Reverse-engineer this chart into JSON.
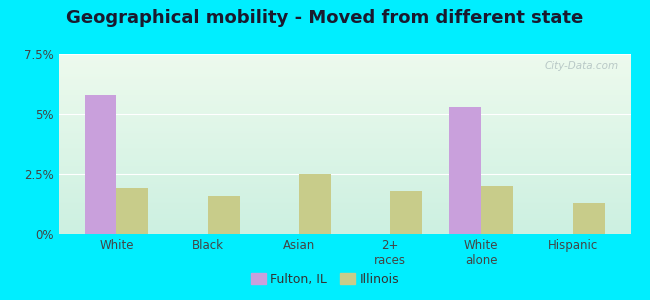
{
  "title": "Geographical mobility - Moved from different state",
  "categories": [
    "White",
    "Black",
    "Asian",
    "2+\nraces",
    "White\nalone",
    "Hispanic"
  ],
  "fulton_values": [
    5.8,
    0.0,
    0.0,
    0.0,
    5.3,
    0.0
  ],
  "illinois_values": [
    1.9,
    1.6,
    2.5,
    1.8,
    2.0,
    1.3
  ],
  "fulton_color": "#c9a0dc",
  "illinois_color": "#c8cc8a",
  "ylim": [
    0,
    7.5
  ],
  "yticks": [
    0,
    2.5,
    5.0,
    7.5
  ],
  "ytick_labels": [
    "0%",
    "2.5%",
    "5%",
    "7.5%"
  ],
  "bar_width": 0.35,
  "outer_bg": "#00eeff",
  "title_fontsize": 13,
  "legend_labels": [
    "Fulton, IL",
    "Illinois"
  ],
  "watermark": "City-Data.com"
}
